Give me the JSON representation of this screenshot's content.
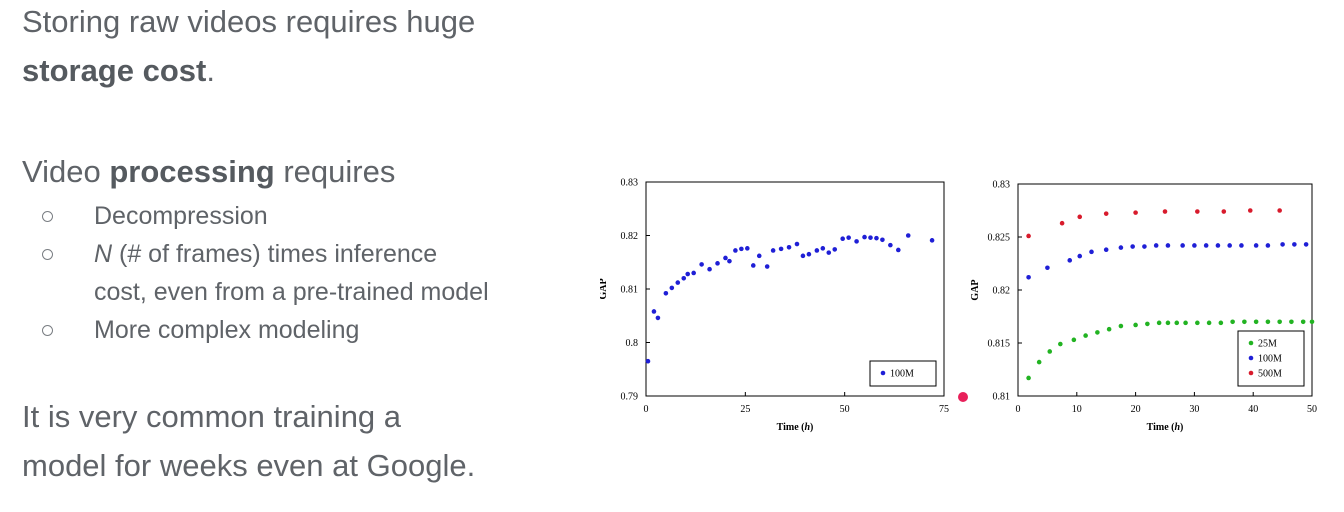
{
  "slide": {
    "p1_line1": "Storing raw videos requires huge",
    "p1_bold": "storage cost",
    "p1_end": ".",
    "p2_pre": "Video ",
    "p2_bold": "processing",
    "p2_post": " requires",
    "bullets": [
      {
        "em": "",
        "text": "Decompression"
      },
      {
        "em": "N",
        "text": " (# of frames) times inference",
        "line2": "cost, even from a pre-trained model"
      },
      {
        "em": "",
        "text": "More complex modeling"
      }
    ],
    "p3_line1": "It is very common training a",
    "p3_line2": "model for weeks even at Google."
  },
  "chart_data": [
    {
      "type": "scatter",
      "xlabel": "Time (h)",
      "ylabel": "GAP",
      "xlim": [
        0,
        75
      ],
      "ylim": [
        0.79,
        0.83
      ],
      "xticks": [
        "0",
        "25",
        "50",
        "75"
      ],
      "yticks": [
        "0.79",
        "0.8",
        "0.81",
        "0.82",
        "0.83"
      ],
      "legend_position": "bottom-right",
      "series": [
        {
          "name": "100M",
          "color": "#1f1fd6",
          "points": [
            [
              0.5,
              0.7965
            ],
            [
              2,
              0.8058
            ],
            [
              3,
              0.8046
            ],
            [
              5,
              0.8092
            ],
            [
              6.5,
              0.8102
            ],
            [
              8,
              0.8112
            ],
            [
              9.5,
              0.812
            ],
            [
              10.5,
              0.8128
            ],
            [
              12,
              0.813
            ],
            [
              14,
              0.8146
            ],
            [
              16,
              0.8137
            ],
            [
              18,
              0.8148
            ],
            [
              20,
              0.8158
            ],
            [
              21,
              0.8152
            ],
            [
              22.5,
              0.8172
            ],
            [
              24,
              0.8175
            ],
            [
              25.5,
              0.8176
            ],
            [
              27,
              0.8144
            ],
            [
              28.5,
              0.8162
            ],
            [
              30.5,
              0.8142
            ],
            [
              32,
              0.8172
            ],
            [
              34,
              0.8175
            ],
            [
              36,
              0.8178
            ],
            [
              38,
              0.8184
            ],
            [
              39.5,
              0.8162
            ],
            [
              41,
              0.8165
            ],
            [
              43,
              0.8172
            ],
            [
              44.5,
              0.8176
            ],
            [
              46,
              0.8168
            ],
            [
              47.5,
              0.8174
            ],
            [
              49.5,
              0.8194
            ],
            [
              51,
              0.8196
            ],
            [
              53,
              0.8189
            ],
            [
              55,
              0.8197
            ],
            [
              56.5,
              0.8196
            ],
            [
              58,
              0.8195
            ],
            [
              59.5,
              0.8192
            ],
            [
              61.5,
              0.8182
            ],
            [
              63.5,
              0.8173
            ],
            [
              66,
              0.82
            ],
            [
              72,
              0.8191
            ]
          ]
        }
      ]
    },
    {
      "type": "scatter",
      "xlabel": "Time (h)",
      "ylabel": "GAP",
      "xlim": [
        0,
        50
      ],
      "ylim": [
        0.81,
        0.83
      ],
      "xticks": [
        "0",
        "10",
        "20",
        "30",
        "40",
        "50"
      ],
      "yticks": [
        "0.81",
        "0.815",
        "0.82",
        "0.825",
        "0.83"
      ],
      "legend_position": "bottom-right",
      "series": [
        {
          "name": "25M",
          "color": "#22b322",
          "points": [
            [
              1.8,
              0.8117
            ],
            [
              3.6,
              0.8132
            ],
            [
              5.4,
              0.8142
            ],
            [
              7.2,
              0.8149
            ],
            [
              9.5,
              0.8153
            ],
            [
              11.5,
              0.8157
            ],
            [
              13.5,
              0.816
            ],
            [
              15.5,
              0.8163
            ],
            [
              17.5,
              0.8166
            ],
            [
              20,
              0.8167
            ],
            [
              22,
              0.8168
            ],
            [
              24,
              0.8169
            ],
            [
              25.5,
              0.8169
            ],
            [
              27,
              0.8169
            ],
            [
              28.5,
              0.8169
            ],
            [
              30.5,
              0.8169
            ],
            [
              32.5,
              0.8169
            ],
            [
              34.5,
              0.8169
            ],
            [
              36.5,
              0.817
            ],
            [
              38.5,
              0.817
            ],
            [
              40.5,
              0.817
            ],
            [
              42.5,
              0.817
            ],
            [
              44.5,
              0.817
            ],
            [
              46.5,
              0.817
            ],
            [
              48.5,
              0.817
            ],
            [
              50,
              0.817
            ]
          ]
        },
        {
          "name": "100M",
          "color": "#1f1fd6",
          "points": [
            [
              1.8,
              0.8212
            ],
            [
              5,
              0.8221
            ],
            [
              8.8,
              0.8228
            ],
            [
              10.5,
              0.8232
            ],
            [
              12.5,
              0.8236
            ],
            [
              15,
              0.8238
            ],
            [
              17.5,
              0.824
            ],
            [
              19.5,
              0.8241
            ],
            [
              21.5,
              0.8241
            ],
            [
              23.5,
              0.8242
            ],
            [
              25.5,
              0.8242
            ],
            [
              28,
              0.8242
            ],
            [
              30,
              0.8242
            ],
            [
              32,
              0.8242
            ],
            [
              34,
              0.8242
            ],
            [
              36,
              0.8242
            ],
            [
              38,
              0.8242
            ],
            [
              40.5,
              0.8242
            ],
            [
              42.5,
              0.8242
            ],
            [
              45,
              0.8243
            ],
            [
              47,
              0.8243
            ],
            [
              49,
              0.8243
            ]
          ]
        },
        {
          "name": "500M",
          "color": "#d81b2c",
          "points": [
            [
              1.8,
              0.8251
            ],
            [
              7.5,
              0.8263
            ],
            [
              10.5,
              0.8269
            ],
            [
              15,
              0.8272
            ],
            [
              20,
              0.8273
            ],
            [
              25,
              0.8274
            ],
            [
              30.5,
              0.8274
            ],
            [
              35,
              0.8274
            ],
            [
              39.5,
              0.8275
            ],
            [
              44.5,
              0.8275
            ]
          ]
        }
      ]
    }
  ]
}
